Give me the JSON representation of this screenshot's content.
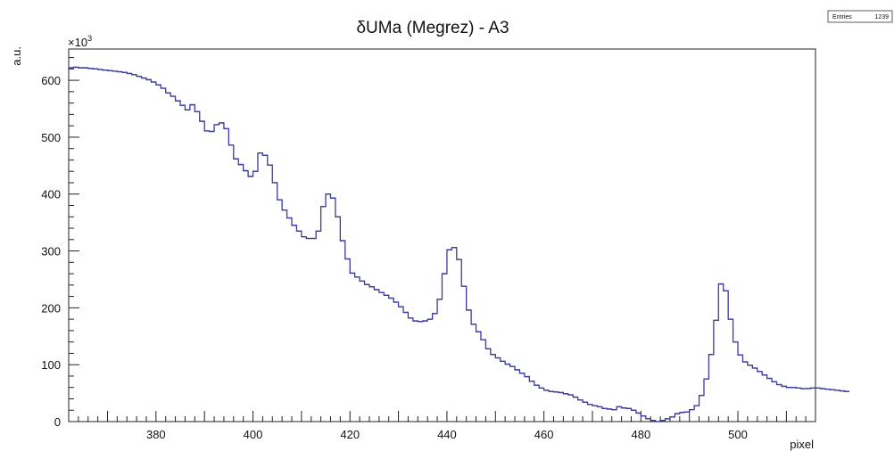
{
  "chart_data": {
    "type": "histogram",
    "title": "δUMa (Megrez) - A3",
    "xlabel": "pixel",
    "ylabel": "a.u.",
    "y_exponent_label": "×10",
    "y_exponent_power": "3",
    "xlim": [
      362,
      516
    ],
    "ylim": [
      0,
      655
    ],
    "x_ticks": [
      380,
      400,
      420,
      440,
      460,
      480,
      500
    ],
    "y_ticks": [
      0,
      100,
      200,
      300,
      400,
      500,
      600
    ],
    "line_color": "#3a3aa0",
    "grid": false,
    "stats_box": {
      "label": "Entries",
      "value": "1239"
    },
    "bin_width": 1,
    "x_start": 362,
    "series": [
      {
        "values": [
          622,
          623,
          622,
          622,
          621,
          620,
          619,
          618,
          617,
          616,
          615,
          614,
          612,
          610,
          607,
          604,
          601,
          597,
          592,
          586,
          578,
          572,
          564,
          556,
          548,
          557,
          545,
          528,
          511,
          510,
          522,
          525,
          515,
          486,
          462,
          452,
          441,
          431,
          440,
          472,
          468,
          451,
          420,
          390,
          372,
          358,
          345,
          335,
          325,
          322,
          322,
          335,
          378,
          400,
          393,
          360,
          318,
          286,
          261,
          254,
          247,
          241,
          237,
          232,
          227,
          222,
          217,
          210,
          202,
          192,
          182,
          177,
          176,
          177,
          180,
          190,
          215,
          260,
          302,
          306,
          285,
          238,
          196,
          171,
          158,
          144,
          128,
          118,
          112,
          106,
          101,
          97,
          91,
          85,
          79,
          71,
          64,
          59,
          55,
          53,
          52,
          51,
          49,
          47,
          43,
          38,
          34,
          30,
          28,
          26,
          23,
          22,
          21,
          26,
          24,
          23,
          20,
          15,
          10,
          5,
          2,
          0,
          2,
          5,
          8,
          14,
          16,
          17,
          21,
          28,
          46,
          75,
          118,
          178,
          242,
          230,
          180,
          140,
          117,
          105,
          99,
          94,
          88,
          82,
          76,
          70,
          65,
          62,
          60,
          60,
          59,
          58,
          58,
          59,
          59,
          58,
          57,
          56,
          55,
          54,
          53
        ]
      }
    ]
  }
}
